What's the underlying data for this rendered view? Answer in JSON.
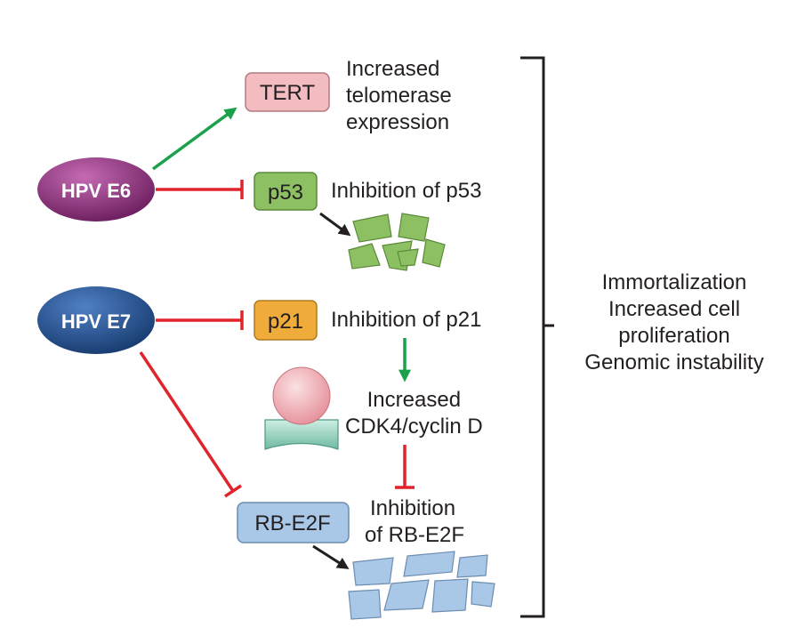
{
  "viruses": {
    "e6": {
      "label": "HPV E6",
      "color": "#8e2a7c"
    },
    "e7": {
      "label": "HPV E7",
      "color": "#1f4f8f"
    }
  },
  "proteins": {
    "tert": {
      "label": "TERT",
      "color": "#f3bcc1"
    },
    "p53": {
      "label": "p53",
      "color": "#8cc063"
    },
    "p21": {
      "label": "p21",
      "color": "#f0ac3a"
    },
    "rb_e2f": {
      "label": "RB-E2F",
      "color": "#a9c7e6"
    }
  },
  "effects": {
    "tert": [
      "Increased",
      "telomerase",
      "expression"
    ],
    "p53": "Inhibition of p53",
    "p21": "Inhibition of p21",
    "cdk": [
      "Increased",
      "CDK4/cyclin D"
    ],
    "rb": [
      "Inhibition",
      "of RB-E2F"
    ]
  },
  "outcomes": [
    "Immortalization",
    "Increased cell",
    "proliferation",
    "Genomic instability"
  ],
  "colors": {
    "activation": "#1aa14a",
    "inhibition": "#e0242b",
    "arrow": "#231f20",
    "cyclin": "#f2b3b8",
    "cdk4": "#a8dacb"
  }
}
